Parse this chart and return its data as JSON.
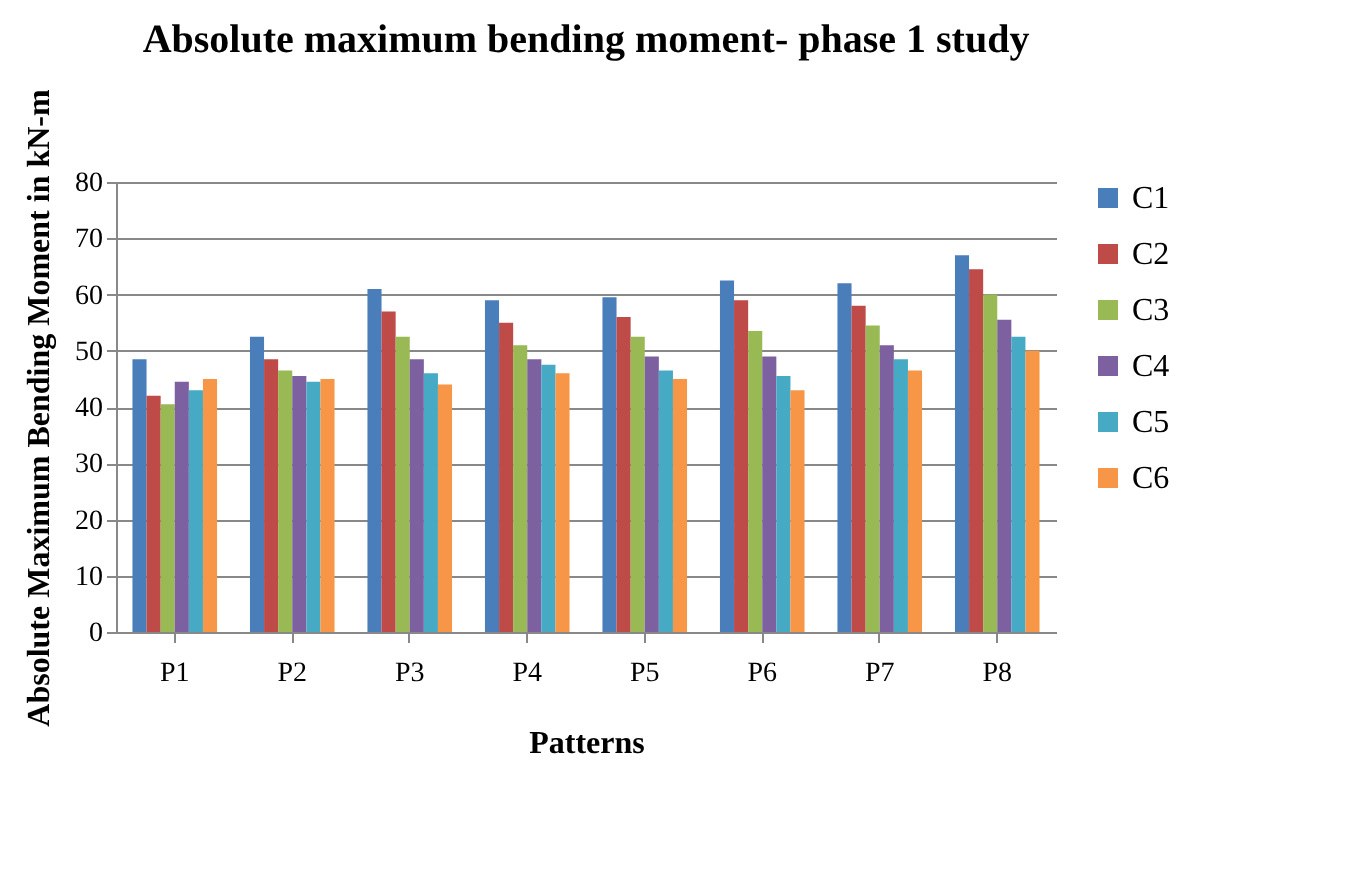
{
  "chart_data": {
    "type": "bar",
    "title": "Absolute maximum bending moment- phase 1 study",
    "xlabel": "Patterns",
    "ylabel": "Absolute Maximum Bending Moment in kN-m",
    "categories": [
      "P1",
      "P2",
      "P3",
      "P4",
      "P5",
      "P6",
      "P7",
      "P8"
    ],
    "series": [
      {
        "name": "C1",
        "color": "#4a7ebb",
        "values": [
          48.5,
          52.5,
          61,
          59,
          59.5,
          62.5,
          62,
          67
        ]
      },
      {
        "name": "C2",
        "color": "#be4b48",
        "values": [
          42,
          48.5,
          57,
          55,
          56,
          59,
          58,
          64.5
        ]
      },
      {
        "name": "C3",
        "color": "#98b954",
        "values": [
          40.5,
          46.5,
          52.5,
          51,
          52.5,
          53.5,
          54.5,
          60
        ]
      },
      {
        "name": "C4",
        "color": "#7d60a0",
        "values": [
          44.5,
          45.5,
          48.5,
          48.5,
          49,
          49,
          51,
          55.5
        ]
      },
      {
        "name": "C5",
        "color": "#46aac5",
        "values": [
          43,
          44.5,
          46,
          47.5,
          46.5,
          45.5,
          48.5,
          52.5
        ]
      },
      {
        "name": "C6",
        "color": "#f79646",
        "values": [
          45,
          45,
          44,
          46,
          45,
          43,
          46.5,
          50
        ]
      }
    ],
    "ylim": [
      0,
      80
    ],
    "yticks": [
      0,
      10,
      20,
      30,
      40,
      50,
      60,
      70,
      80
    ],
    "grid": "y",
    "legend": "right"
  }
}
